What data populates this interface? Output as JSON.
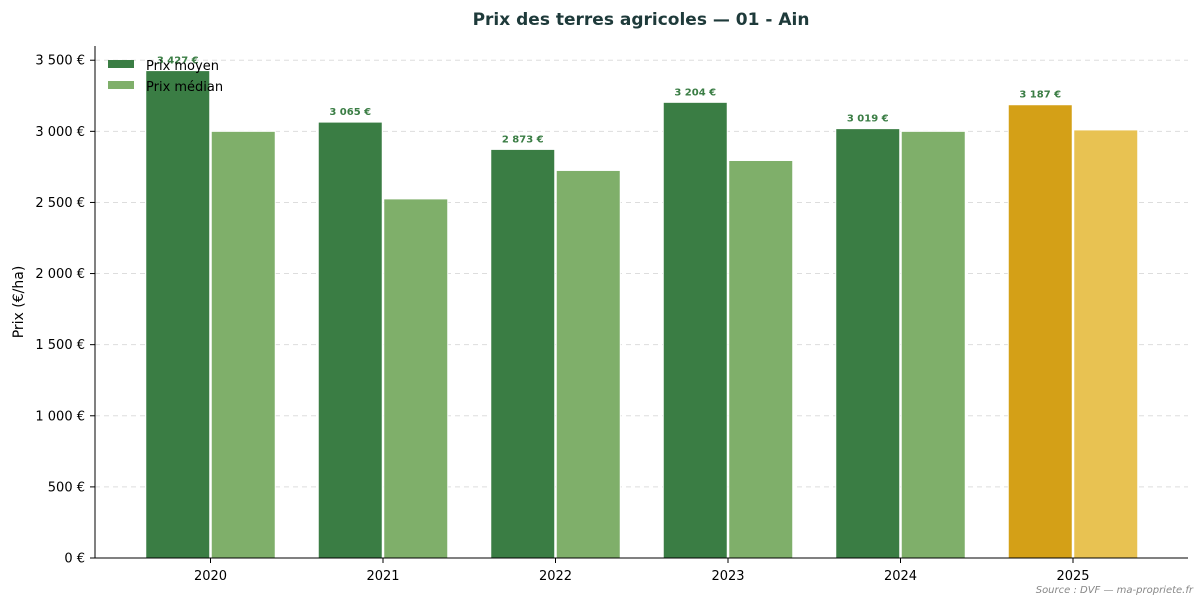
{
  "chart_data": {
    "type": "bar",
    "title": "Prix des terres agricoles — 01 - Ain",
    "xlabel": "",
    "ylabel": "Prix (€/ha)",
    "ylim": [
      0,
      3600
    ],
    "grid": "horizontal dashed",
    "legend_position": "top-left",
    "categories": [
      "2020",
      "2021",
      "2022",
      "2023",
      "2024",
      "2025"
    ],
    "y_ticks": [
      0,
      500,
      1000,
      1500,
      2000,
      2500,
      3000,
      3500
    ],
    "y_tick_labels": [
      "0 €",
      "500 €",
      "1 000 €",
      "1 500 €",
      "2 000 €",
      "2 500 €",
      "3 000 €",
      "3 500 €"
    ],
    "series": [
      {
        "name": "Prix moyen",
        "values": [
          3427,
          3065,
          2873,
          3204,
          3019,
          3187
        ],
        "labels": [
          "3 427 €",
          "3 065 €",
          "2 873 €",
          "3 204 €",
          "3 019 €",
          "3 187 €"
        ],
        "color": "#3a7d44",
        "highlight_color": "#d4a017"
      },
      {
        "name": "Prix médian",
        "values": [
          3000,
          2525,
          2725,
          2795,
          3000,
          3010
        ],
        "color": "#7faf6a",
        "highlight_color": "#e8c252"
      }
    ],
    "highlight_category": "2025",
    "label_color": "#3a7d44",
    "source": "Source : DVF — ma-propriete.fr"
  }
}
